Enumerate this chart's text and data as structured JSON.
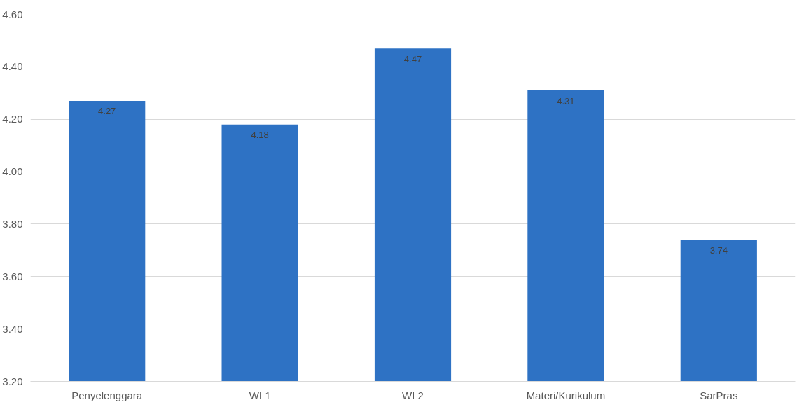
{
  "chart_data": {
    "type": "bar",
    "categories": [
      "Penyelenggara",
      "WI 1",
      "WI 2",
      "Materi/Kurikulum",
      "SarPras"
    ],
    "values": [
      4.27,
      4.18,
      4.47,
      4.31,
      3.74
    ],
    "color": "#2e72c4",
    "ylim": [
      3.2,
      4.6
    ],
    "yticks": [
      {
        "value": 3.2,
        "label": "3.20"
      },
      {
        "value": 3.4,
        "label": "3.40"
      },
      {
        "value": 3.6,
        "label": "3.60"
      },
      {
        "value": 3.8,
        "label": "3.80"
      },
      {
        "value": 4.0,
        "label": "4.00"
      },
      {
        "value": 4.2,
        "label": "4.20"
      },
      {
        "value": 4.4,
        "label": "4.40"
      },
      {
        "value": 4.6,
        "label": "4.60"
      }
    ],
    "grid": "y",
    "data_labels": true
  }
}
